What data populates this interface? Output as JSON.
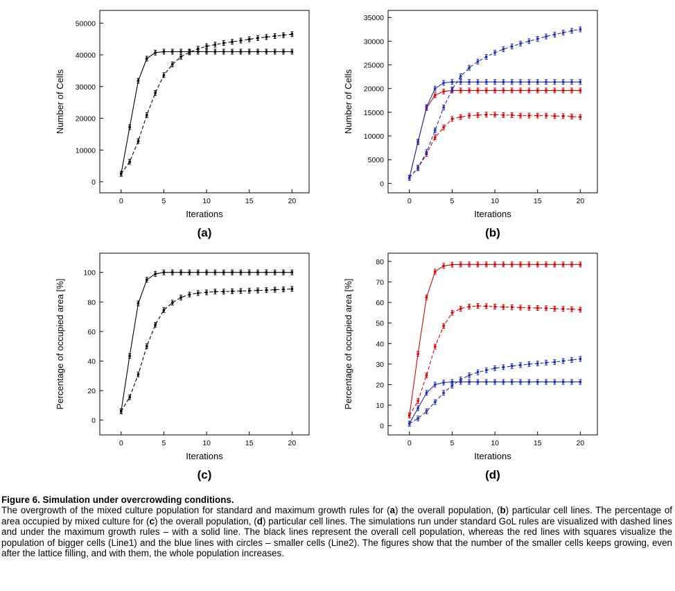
{
  "chart_data": [
    {
      "type": "line",
      "panel_label": "(a)",
      "xlabel": "Iterations",
      "ylabel": "Number of Cells",
      "xlim": [
        -2.5,
        22
      ],
      "ylim": [
        -3500,
        54000
      ],
      "xticks": [
        0,
        5,
        10,
        15,
        20
      ],
      "yticks": [
        0,
        10000,
        20000,
        30000,
        40000,
        50000
      ],
      "series": [
        {
          "style": "solid",
          "color": "#000000",
          "markers": true,
          "x": [
            0,
            1,
            2,
            3,
            4,
            5,
            6,
            7,
            8,
            9,
            10,
            11,
            12,
            13,
            14,
            15,
            16,
            17,
            18,
            19,
            20
          ],
          "y": [
            2500,
            17200,
            31800,
            38800,
            40700,
            41000,
            41000,
            41000,
            41000,
            41000,
            41000,
            41000,
            41000,
            41000,
            41000,
            41000,
            41000,
            41000,
            41000,
            41000,
            41000
          ]
        },
        {
          "style": "dashed",
          "color": "#000000",
          "markers": true,
          "x": [
            0,
            1,
            2,
            3,
            4,
            5,
            6,
            7,
            8,
            9,
            10,
            11,
            12,
            13,
            14,
            15,
            16,
            17,
            18,
            19,
            20
          ],
          "y": [
            2500,
            6300,
            12800,
            21000,
            28000,
            33600,
            37000,
            39400,
            40800,
            41900,
            42700,
            43200,
            43700,
            44100,
            44500,
            44900,
            45300,
            45600,
            45900,
            46200,
            46500
          ]
        }
      ]
    },
    {
      "type": "line",
      "panel_label": "(b)",
      "xlabel": "Iterations",
      "ylabel": "Number of Cells",
      "xlim": [
        -2.5,
        22
      ],
      "ylim": [
        -2000,
        36500
      ],
      "xticks": [
        0,
        5,
        10,
        15,
        20
      ],
      "yticks": [
        0,
        5000,
        10000,
        15000,
        20000,
        25000,
        30000,
        35000
      ],
      "series": [
        {
          "style": "solid",
          "color": "#e00000",
          "markers": true,
          "x": [
            0,
            1,
            2,
            3,
            4,
            5,
            6,
            7,
            8,
            9,
            10,
            11,
            12,
            13,
            14,
            15,
            16,
            17,
            18,
            19,
            20
          ],
          "y": [
            1200,
            8800,
            15900,
            18600,
            19400,
            19600,
            19600,
            19600,
            19600,
            19600,
            19600,
            19600,
            19600,
            19600,
            19600,
            19600,
            19600,
            19600,
            19600,
            19600,
            19600
          ]
        },
        {
          "style": "dashed",
          "color": "#e00000",
          "markers": true,
          "x": [
            0,
            1,
            2,
            3,
            4,
            5,
            6,
            7,
            8,
            9,
            10,
            11,
            12,
            13,
            14,
            15,
            16,
            17,
            18,
            19,
            20
          ],
          "y": [
            1200,
            3200,
            6200,
            9700,
            11800,
            13600,
            14000,
            14300,
            14400,
            14500,
            14500,
            14400,
            14400,
            14300,
            14300,
            14300,
            14300,
            14200,
            14200,
            14100,
            14000
          ]
        },
        {
          "style": "solid",
          "color": "#2030b0",
          "markers": true,
          "x": [
            0,
            1,
            2,
            3,
            4,
            5,
            6,
            7,
            8,
            9,
            10,
            11,
            12,
            13,
            14,
            15,
            16,
            17,
            18,
            19,
            20
          ],
          "y": [
            1200,
            8700,
            16100,
            20000,
            21200,
            21400,
            21400,
            21400,
            21400,
            21400,
            21400,
            21400,
            21400,
            21400,
            21400,
            21400,
            21400,
            21400,
            21400,
            21400,
            21400
          ]
        },
        {
          "style": "dashed",
          "color": "#2030b0",
          "markers": true,
          "x": [
            0,
            1,
            2,
            3,
            4,
            5,
            6,
            7,
            8,
            9,
            10,
            11,
            12,
            13,
            14,
            15,
            16,
            17,
            18,
            19,
            20
          ],
          "y": [
            1200,
            3300,
            6600,
            11200,
            16000,
            19800,
            22600,
            24400,
            25700,
            26700,
            27600,
            28300,
            28900,
            29500,
            30000,
            30500,
            31000,
            31400,
            31800,
            32200,
            32500
          ]
        }
      ]
    },
    {
      "type": "line",
      "panel_label": "(c)",
      "xlabel": "Iterations",
      "ylabel": "Percentage of occupied area [%]",
      "xlim": [
        -2.5,
        22
      ],
      "ylim": [
        -10,
        113
      ],
      "xticks": [
        0,
        5,
        10,
        15,
        20
      ],
      "yticks": [
        0,
        20,
        40,
        60,
        80,
        100
      ],
      "series": [
        {
          "style": "solid",
          "color": "#000000",
          "markers": true,
          "x": [
            0,
            1,
            2,
            3,
            4,
            5,
            6,
            7,
            8,
            9,
            10,
            11,
            12,
            13,
            14,
            15,
            16,
            17,
            18,
            19,
            20
          ],
          "y": [
            6,
            43.5,
            79,
            95,
            99,
            100,
            100,
            100,
            100,
            100,
            100,
            100,
            100,
            100,
            100,
            100,
            100,
            100,
            100,
            100,
            100
          ]
        },
        {
          "style": "dashed",
          "color": "#000000",
          "markers": true,
          "x": [
            0,
            1,
            2,
            3,
            4,
            5,
            6,
            7,
            8,
            9,
            10,
            11,
            12,
            13,
            14,
            15,
            16,
            17,
            18,
            19,
            20
          ],
          "y": [
            6,
            15.5,
            31,
            50,
            64.5,
            74.5,
            79.5,
            83,
            85,
            86,
            86.5,
            87,
            87,
            87.2,
            87.4,
            87.6,
            87.8,
            88,
            88.3,
            88.5,
            88.8
          ]
        }
      ]
    },
    {
      "type": "line",
      "panel_label": "(d)",
      "xlabel": "Iterations",
      "ylabel": "Percentage of occupied area [%]",
      "xlim": [
        -2.5,
        22
      ],
      "ylim": [
        -4.5,
        84
      ],
      "xticks": [
        0,
        5,
        10,
        15,
        20
      ],
      "yticks": [
        0,
        10,
        20,
        30,
        40,
        50,
        60,
        70,
        80
      ],
      "series": [
        {
          "style": "solid",
          "color": "#e00000",
          "markers": true,
          "x": [
            0,
            1,
            2,
            3,
            4,
            5,
            6,
            7,
            8,
            9,
            10,
            11,
            12,
            13,
            14,
            15,
            16,
            17,
            18,
            19,
            20
          ],
          "y": [
            5,
            35,
            62.5,
            75,
            77.8,
            78.4,
            78.5,
            78.5,
            78.5,
            78.5,
            78.5,
            78.5,
            78.5,
            78.5,
            78.5,
            78.5,
            78.5,
            78.5,
            78.5,
            78.5,
            78.5
          ]
        },
        {
          "style": "dashed",
          "color": "#e00000",
          "markers": true,
          "x": [
            0,
            1,
            2,
            3,
            4,
            5,
            6,
            7,
            8,
            9,
            10,
            11,
            12,
            13,
            14,
            15,
            16,
            17,
            18,
            19,
            20
          ],
          "y": [
            5,
            12,
            24.5,
            38.5,
            48.5,
            55,
            57,
            58,
            58.3,
            58.2,
            58,
            57.8,
            57.7,
            57.5,
            57.4,
            57.3,
            57.2,
            57,
            56.9,
            56.7,
            56.5
          ]
        },
        {
          "style": "solid",
          "color": "#2030b0",
          "markers": true,
          "x": [
            0,
            1,
            2,
            3,
            4,
            5,
            6,
            7,
            8,
            9,
            10,
            11,
            12,
            13,
            14,
            15,
            16,
            17,
            18,
            19,
            20
          ],
          "y": [
            1,
            8.5,
            16,
            20,
            21,
            21.3,
            21.3,
            21.3,
            21.3,
            21.3,
            21.3,
            21.3,
            21.3,
            21.3,
            21.3,
            21.3,
            21.3,
            21.3,
            21.3,
            21.3,
            21.3
          ]
        },
        {
          "style": "dashed",
          "color": "#2030b0",
          "markers": true,
          "x": [
            0,
            1,
            2,
            3,
            4,
            5,
            6,
            7,
            8,
            9,
            10,
            11,
            12,
            13,
            14,
            15,
            16,
            17,
            18,
            19,
            20
          ],
          "y": [
            1,
            3.5,
            7,
            11.5,
            16,
            19.5,
            22.5,
            24.5,
            26,
            27,
            28,
            28.5,
            29,
            29.5,
            30,
            30.3,
            30.7,
            31,
            31.5,
            32,
            32.5
          ]
        }
      ]
    }
  ],
  "caption": {
    "title": "Figure 6. Simulation under overcrowding conditions.",
    "parts": [
      {
        "t": "The overgrowth of the mixed culture population for standard and maximum growth rules for (",
        "b": false
      },
      {
        "t": "a",
        "b": true
      },
      {
        "t": ") the overall population, (",
        "b": false
      },
      {
        "t": "b",
        "b": true
      },
      {
        "t": ") particular cell lines. The percentage of area occupied by mixed culture for (",
        "b": false
      },
      {
        "t": "c",
        "b": true
      },
      {
        "t": ") the overall population, (",
        "b": false
      },
      {
        "t": "d",
        "b": true
      },
      {
        "t": ") particular cell lines. The simulations run under standard GoL rules are visualized with dashed lines and under the maximum growth rules – with a solid line. The black lines represent the overall cell population, whereas the red lines with squares visualize the population of bigger cells (Line1) and the blue lines with circles – smaller cells (Line2). The figures show that the number of the smaller cells keeps growing, even after the lattice filling, and with them, the whole population increases.",
        "b": false
      }
    ]
  }
}
